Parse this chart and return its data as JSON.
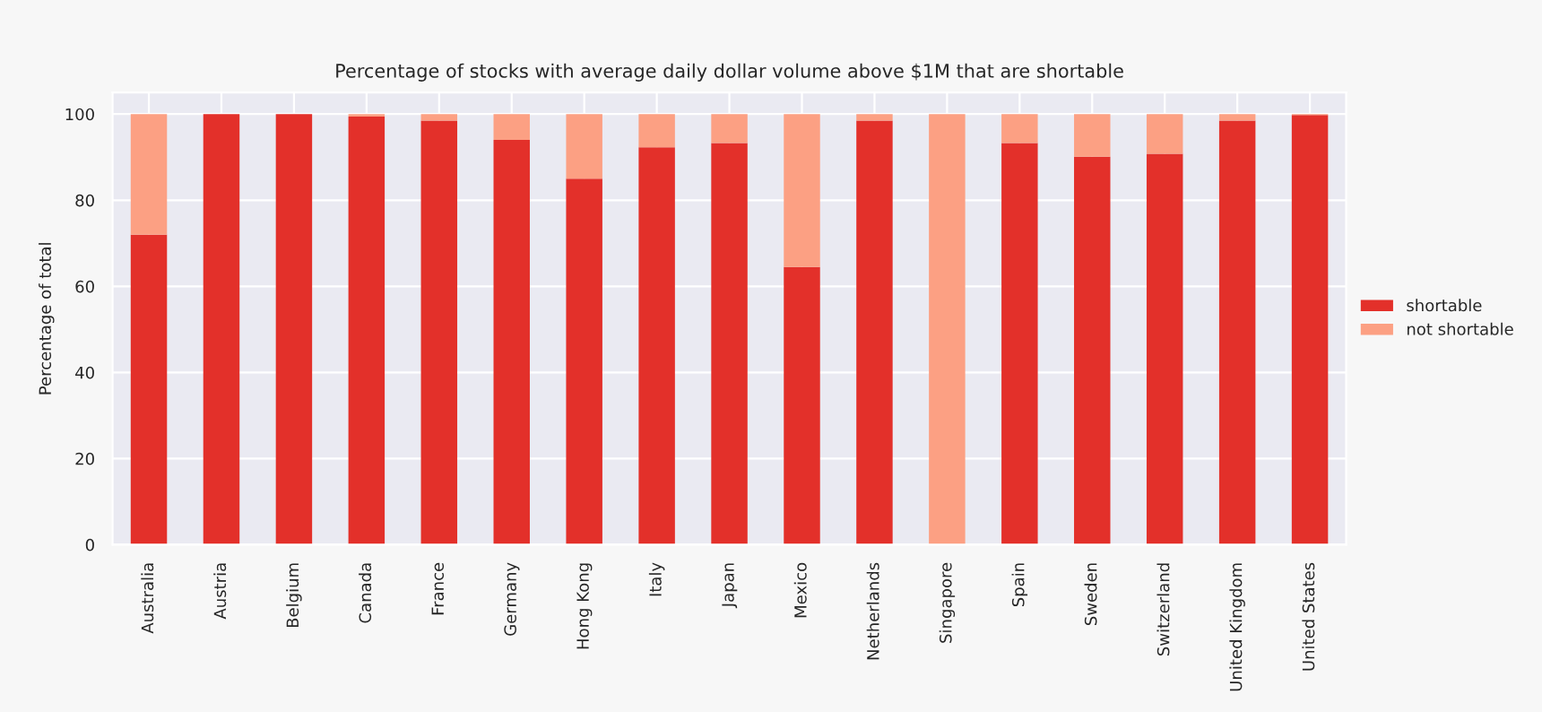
{
  "chart_data": {
    "type": "bar",
    "stacked": true,
    "title": "Percentage of stocks with average daily dollar volume above $1M that are shortable",
    "ylabel": "Percentage of total",
    "categories": [
      "Australia",
      "Austria",
      "Belgium",
      "Canada",
      "France",
      "Germany",
      "Hong Kong",
      "Italy",
      "Japan",
      "Mexico",
      "Netherlands",
      "Singapore",
      "Spain",
      "Sweden",
      "Switzerland",
      "United Kingdom",
      "United States"
    ],
    "series": [
      {
        "name": "shortable",
        "color": "#e3302a",
        "values": [
          72,
          100,
          100,
          99.4,
          98.5,
          94,
          85,
          92.3,
          93.3,
          64.5,
          98.5,
          0,
          93.3,
          90.1,
          90.8,
          98.5,
          99.8
        ]
      },
      {
        "name": "not shortable",
        "color": "#fca083",
        "values": [
          28,
          0,
          0,
          0.6,
          1.5,
          6,
          15,
          7.7,
          6.7,
          35.5,
          1.5,
          100,
          6.7,
          9.9,
          9.2,
          1.5,
          0.2
        ]
      }
    ],
    "ylim": [
      0,
      105
    ],
    "yticks": [
      0,
      20,
      40,
      60,
      80,
      100
    ],
    "grid": true,
    "legend": "right"
  }
}
